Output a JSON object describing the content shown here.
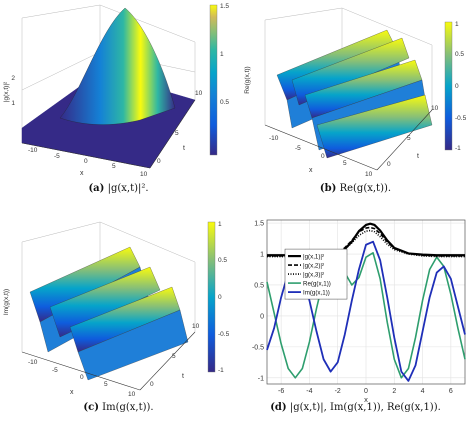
{
  "figure": {
    "panels": [
      {
        "id": "a",
        "caption_label": "(a)",
        "caption_text": "|g(x,t)|².",
        "zlabel": "|g(x,t)|²",
        "xlabel": "x",
        "tlabel": "t",
        "x_ticks": [
          "-10",
          "-5",
          "0",
          "5",
          "10"
        ],
        "t_ticks": [
          "0",
          "5",
          "10"
        ],
        "z_ticks": [
          "1",
          "2"
        ],
        "colorbar_ticks": [
          "1.5",
          "1",
          "0.5"
        ]
      },
      {
        "id": "b",
        "caption_label": "(b)",
        "caption_text": "Re(g(x,t)).",
        "zlabel": "Re(g(x,t))",
        "xlabel": "x",
        "tlabel": "t",
        "x_ticks": [
          "-10",
          "-5",
          "0",
          "5",
          "10"
        ],
        "t_ticks": [
          "0",
          "5",
          "10"
        ],
        "colorbar_ticks": [
          "1",
          "0.5",
          "0",
          "-0.5",
          "-1"
        ]
      },
      {
        "id": "c",
        "caption_label": "(c)",
        "caption_text": "Im(g(x,t)).",
        "zlabel": "Im(g(x,t))",
        "xlabel": "x",
        "tlabel": "t",
        "x_ticks": [
          "-10",
          "-5",
          "0",
          "5",
          "10"
        ],
        "t_ticks": [
          "0",
          "5",
          "10"
        ],
        "colorbar_ticks": [
          "1",
          "0.5",
          "0",
          "-0.5",
          "-1"
        ]
      }
    ]
  },
  "chart_data": {
    "type": "line",
    "panel_label": "(d)",
    "caption_text": "|g(x,t)|, Im(g(x,1)), Re(g(x,1)).",
    "xlabel": "x",
    "ylabel": "",
    "xlim": [
      -7,
      7
    ],
    "ylim": [
      -1.1,
      1.55
    ],
    "x_ticks": [
      -6,
      -4,
      -2,
      0,
      2,
      4,
      6
    ],
    "y_ticks": [
      -1,
      -0.5,
      0,
      0.5,
      1,
      1.5
    ],
    "legend_position": "center-left",
    "series": [
      {
        "name": "|g(x,1)|²",
        "color": "#000000",
        "style": "solid",
        "width": 2.2,
        "x": [
          -7,
          -6,
          -5,
          -4,
          -3,
          -2,
          -1.5,
          -1,
          -0.5,
          0,
          0.3,
          0.6,
          1,
          1.5,
          2,
          3,
          4,
          5,
          6,
          7
        ],
        "y": [
          0.98,
          0.98,
          0.98,
          0.98,
          0.99,
          1.02,
          1.08,
          1.2,
          1.37,
          1.47,
          1.49,
          1.47,
          1.38,
          1.22,
          1.1,
          1.01,
          0.99,
          0.98,
          0.98,
          0.98
        ]
      },
      {
        "name": "|g(x,2)|²",
        "color": "#000000",
        "style": "dashed",
        "width": 1.6,
        "x": [
          -7,
          -6,
          -5,
          -4,
          -3,
          -2,
          -1.5,
          -1,
          -0.5,
          0,
          0.3,
          0.6,
          1,
          1.5,
          2,
          3,
          4,
          5,
          6,
          7
        ],
        "y": [
          0.97,
          0.97,
          0.97,
          0.98,
          0.99,
          1.03,
          1.1,
          1.22,
          1.36,
          1.42,
          1.43,
          1.41,
          1.33,
          1.2,
          1.09,
          1.01,
          0.98,
          0.97,
          0.97,
          0.97
        ]
      },
      {
        "name": "|g(x,3)|²",
        "color": "#000000",
        "style": "dotted",
        "width": 1.6,
        "x": [
          -7,
          -6,
          -5,
          -4,
          -3,
          -2,
          -1.5,
          -1,
          -0.5,
          0,
          0.3,
          0.6,
          1,
          1.5,
          2,
          3,
          4,
          5,
          6,
          7
        ],
        "y": [
          0.96,
          0.96,
          0.96,
          0.97,
          0.98,
          1.02,
          1.08,
          1.18,
          1.3,
          1.37,
          1.38,
          1.36,
          1.28,
          1.16,
          1.07,
          1.0,
          0.97,
          0.96,
          0.96,
          0.96
        ]
      },
      {
        "name": "Re(g(x,1))",
        "color": "#2e9e6e",
        "style": "solid",
        "width": 1.6,
        "x": [
          -7,
          -6.5,
          -6,
          -5.5,
          -5,
          -4.5,
          -4,
          -3.5,
          -3,
          -2.5,
          -2,
          -1.5,
          -1,
          -0.5,
          0,
          0.5,
          1,
          1.5,
          2,
          2.5,
          3,
          3.5,
          4,
          4.5,
          5,
          5.5,
          6,
          6.5,
          7
        ],
        "y": [
          0.55,
          0.05,
          -0.45,
          -0.85,
          -1.0,
          -0.85,
          -0.42,
          0.12,
          0.6,
          0.9,
          0.92,
          0.7,
          0.5,
          0.62,
          0.95,
          1.02,
          0.6,
          -0.1,
          -0.7,
          -1.0,
          -0.85,
          -0.35,
          0.25,
          0.75,
          0.95,
          0.8,
          0.35,
          -0.2,
          -0.7
        ]
      },
      {
        "name": "Im(g(x,1))",
        "color": "#1f2fb8",
        "style": "solid",
        "width": 1.8,
        "x": [
          -7,
          -6.5,
          -6,
          -5.5,
          -5,
          -4.5,
          -4,
          -3.5,
          -3,
          -2.5,
          -2,
          -1.5,
          -1,
          -0.5,
          0,
          0.5,
          1,
          1.5,
          2,
          2.5,
          3,
          3.5,
          4,
          4.5,
          5,
          5.5,
          6,
          6.5,
          7
        ],
        "y": [
          -0.55,
          -0.2,
          0.3,
          0.7,
          0.85,
          0.65,
          0.25,
          -0.25,
          -0.7,
          -0.9,
          -0.75,
          -0.3,
          0.25,
          0.75,
          1.15,
          1.2,
          0.9,
          0.3,
          -0.35,
          -0.9,
          -1.05,
          -0.8,
          -0.25,
          0.3,
          0.7,
          0.8,
          0.6,
          0.15,
          -0.3
        ]
      }
    ]
  }
}
